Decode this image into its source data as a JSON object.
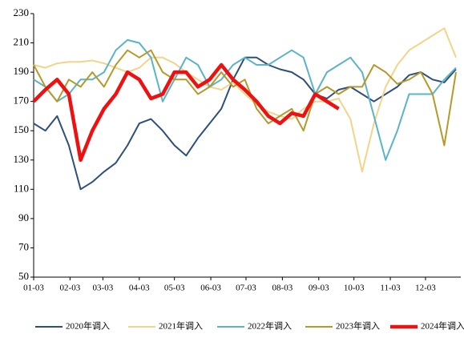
{
  "chart_data": {
    "type": "line",
    "x": [
      "01-03",
      "01-13",
      "01-23",
      "02-02",
      "02-12",
      "02-22",
      "03-04",
      "03-14",
      "03-24",
      "04-03",
      "04-13",
      "04-23",
      "05-03",
      "05-13",
      "05-23",
      "06-02",
      "06-12",
      "06-22",
      "07-02",
      "07-12",
      "07-22",
      "08-01",
      "08-11",
      "08-21",
      "08-31",
      "09-10",
      "09-20",
      "09-30",
      "10-10",
      "10-20",
      "10-30",
      "11-09",
      "11-19",
      "11-29",
      "12-09",
      "12-19",
      "12-29"
    ],
    "xticks": [
      "01-03",
      "02-03",
      "03-03",
      "04-03",
      "05-03",
      "06-03",
      "07-03",
      "08-03",
      "09-03",
      "10-03",
      "11-03",
      "12-03"
    ],
    "ylim": [
      50,
      230
    ],
    "yticks": [
      50,
      70,
      90,
      110,
      130,
      150,
      170,
      190,
      210,
      230
    ],
    "series": [
      {
        "name": "2020年调入",
        "color": "#2e4f7a",
        "width": 2,
        "values": [
          155,
          150,
          160,
          140,
          110,
          115,
          122,
          128,
          140,
          155,
          158,
          150,
          140,
          133,
          145,
          155,
          165,
          185,
          200,
          200,
          195,
          192,
          190,
          185,
          175,
          172,
          178,
          180,
          175,
          170,
          175,
          180,
          188,
          190,
          185,
          183,
          192
        ]
      },
      {
        "name": "2021年调入",
        "color": "#f2d48a",
        "width": 2,
        "values": [
          195,
          193,
          196,
          197,
          197,
          198,
          196,
          193,
          190,
          193,
          200,
          200,
          196,
          190,
          185,
          180,
          178,
          183,
          175,
          168,
          163,
          160,
          158,
          165,
          170,
          170,
          172,
          158,
          122,
          155,
          180,
          195,
          205,
          210,
          215,
          220,
          200
        ]
      },
      {
        "name": "2022年调入",
        "color": "#5ab4c8",
        "width": 2,
        "values": [
          185,
          180,
          170,
          175,
          185,
          185,
          190,
          205,
          212,
          210,
          200,
          170,
          185,
          200,
          195,
          180,
          185,
          195,
          200,
          195,
          195,
          200,
          205,
          200,
          175,
          190,
          195,
          200,
          190,
          160,
          130,
          150,
          175,
          175,
          175,
          185,
          193
        ]
      },
      {
        "name": "2023年调入",
        "color": "#b59a2a",
        "width": 2,
        "values": [
          195,
          180,
          170,
          185,
          180,
          190,
          180,
          195,
          205,
          200,
          205,
          190,
          185,
          185,
          175,
          180,
          190,
          180,
          185,
          165,
          155,
          160,
          165,
          150,
          175,
          180,
          175,
          180,
          180,
          195,
          190,
          182,
          185,
          190,
          175,
          140,
          190
        ]
      },
      {
        "name": "2024年调入",
        "color": "#ee1111",
        "width": 4.5,
        "values": [
          170,
          178,
          185,
          175,
          130,
          150,
          165,
          175,
          190,
          185,
          172,
          175,
          190,
          190,
          180,
          185,
          195,
          185,
          178,
          170,
          160,
          155,
          162,
          160,
          175,
          170,
          165,
          null,
          null,
          null,
          null,
          null,
          null,
          null,
          null,
          null,
          null
        ]
      }
    ]
  }
}
